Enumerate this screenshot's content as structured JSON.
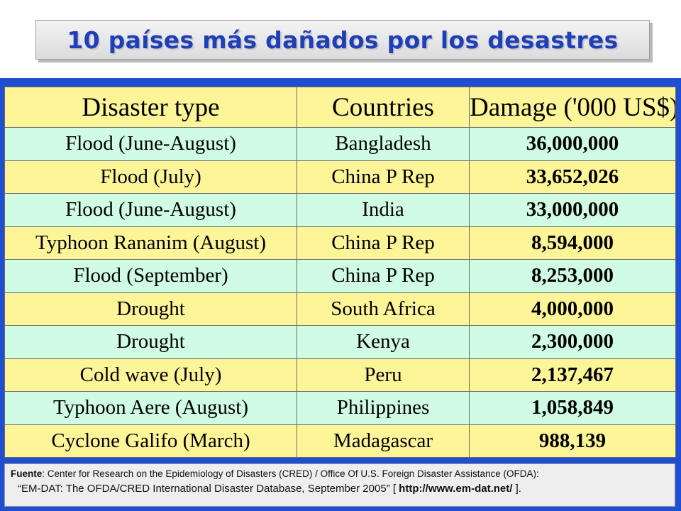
{
  "title": "10 países más dañados por los desastres",
  "table": {
    "headers": [
      "Disaster type",
      "Countries",
      "Damage ('000 US$)"
    ],
    "rows": [
      [
        "Flood (June-August)",
        "Bangladesh",
        "36,000,000"
      ],
      [
        "Flood (July)",
        "China P Rep",
        "33,652,026"
      ],
      [
        "Flood (June-August)",
        "India",
        "33,000,000"
      ],
      [
        "Typhoon Rananim (August)",
        "China P Rep",
        "8,594,000"
      ],
      [
        "Flood (September)",
        "China P Rep",
        "8,253,000"
      ],
      [
        "Drought",
        "South Africa",
        "4,000,000"
      ],
      [
        "Drought",
        "Kenya",
        "2,300,000"
      ],
      [
        "Cold wave (July)",
        "Peru",
        "2,137,467"
      ],
      [
        "Typhoon Aere (August)",
        "Philippines",
        "1,058,849"
      ],
      [
        "Cyclone Galifo (March)",
        "Madagascar",
        "988,139"
      ]
    ]
  },
  "footer": {
    "label": "Fuente",
    "line1": ": Center for Research on the Epidemiology of Disasters (CRED) / Office Of U.S. Foreign Disaster Assistance (OFDA):",
    "line2_text": "“EM-DAT: The OFDA/CRED  International Disaster Database, September 2005” [ ",
    "url": "http://www.em-dat.net/",
    "line2_end": " ]."
  },
  "colors": {
    "title_text": "#1f3fb8",
    "panel_bg": "#1f4fd0",
    "row_green": "#cffce2",
    "row_yellow": "#fef498"
  }
}
